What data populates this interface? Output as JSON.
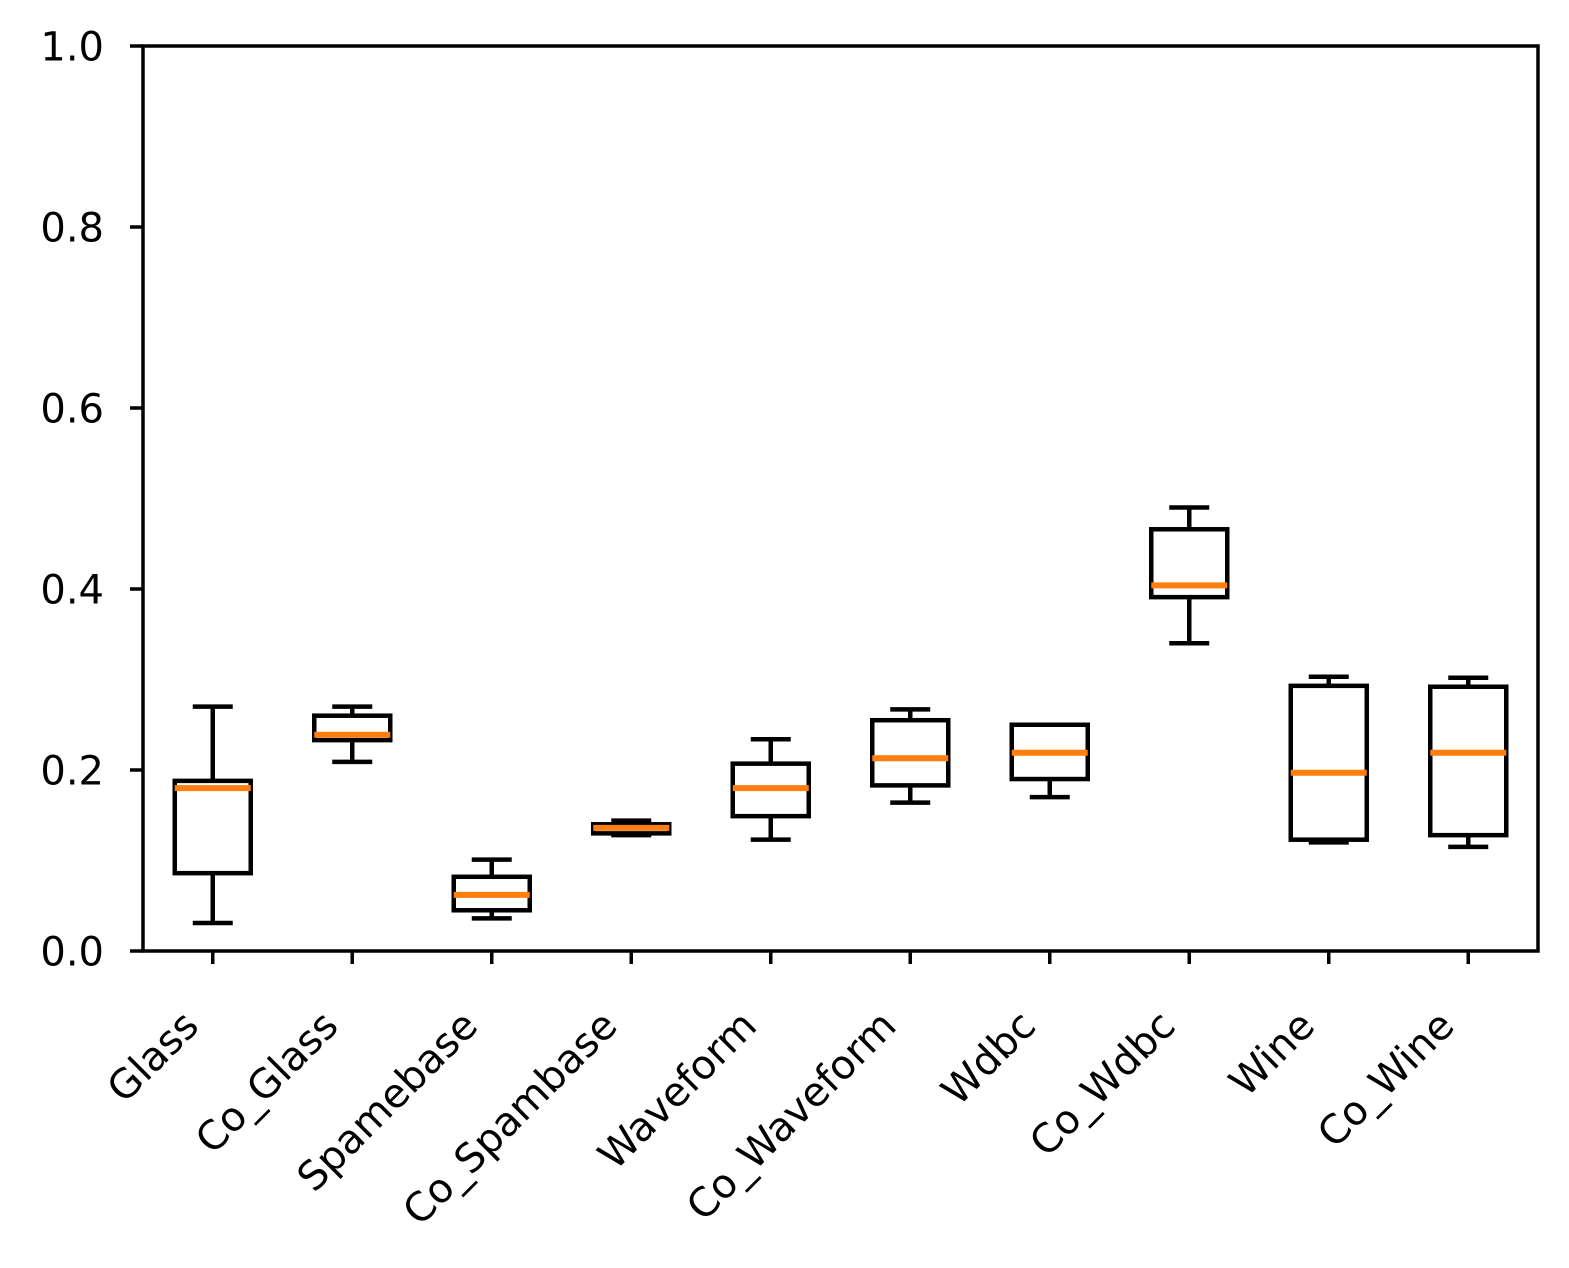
{
  "chart_data": {
    "type": "boxplot",
    "title": "",
    "xlabel": "",
    "ylabel": "",
    "ylim": [
      0.0,
      1.0
    ],
    "yticks": [
      {
        "label": "0.0",
        "value": 0.0
      },
      {
        "label": "0.2",
        "value": 0.2
      },
      {
        "label": "0.4",
        "value": 0.4
      },
      {
        "label": "0.6",
        "value": 0.6
      },
      {
        "label": "0.8",
        "value": 0.8
      },
      {
        "label": "1.0",
        "value": 1.0
      }
    ],
    "categories": [
      "Glass",
      "Co_Glass",
      "Spamebase",
      "Co_Spambase",
      "Waveform",
      "Co_Waveform",
      "Wdbc",
      "Co_Wdbc",
      "Wine",
      "Co_Wine"
    ],
    "series": [
      {
        "label": "Glass",
        "whislo": 0.031,
        "q1": 0.086,
        "med": 0.18,
        "q3": 0.188,
        "whishi": 0.27
      },
      {
        "label": "Co_Glass",
        "whislo": 0.209,
        "q1": 0.233,
        "med": 0.239,
        "q3": 0.26,
        "whishi": 0.27
      },
      {
        "label": "Spamebase",
        "whislo": 0.036,
        "q1": 0.045,
        "med": 0.062,
        "q3": 0.082,
        "whishi": 0.101
      },
      {
        "label": "Co_Spambase",
        "whislo": 0.128,
        "q1": 0.13,
        "med": 0.136,
        "q3": 0.14,
        "whishi": 0.144
      },
      {
        "label": "Waveform",
        "whislo": 0.123,
        "q1": 0.149,
        "med": 0.18,
        "q3": 0.207,
        "whishi": 0.234
      },
      {
        "label": "Co_Waveform",
        "whislo": 0.164,
        "q1": 0.183,
        "med": 0.213,
        "q3": 0.255,
        "whishi": 0.267
      },
      {
        "label": "Wdbc",
        "whislo": 0.17,
        "q1": 0.19,
        "med": 0.219,
        "q3": 0.25,
        "whishi": 0.25
      },
      {
        "label": "Co_Wdbc",
        "whislo": 0.34,
        "q1": 0.391,
        "med": 0.404,
        "q3": 0.466,
        "whishi": 0.49
      },
      {
        "label": "Wine",
        "whislo": 0.12,
        "q1": 0.123,
        "med": 0.197,
        "q3": 0.293,
        "whishi": 0.303
      },
      {
        "label": "Co_Wine",
        "whislo": 0.115,
        "q1": 0.128,
        "med": 0.219,
        "q3": 0.292,
        "whishi": 0.302
      }
    ],
    "grid": false,
    "legend": "none",
    "colors": {
      "median": "#ff7f0e",
      "box_stroke": "#000000",
      "whisker": "#000000",
      "background": "#ffffff",
      "axis": "#000000"
    }
  }
}
